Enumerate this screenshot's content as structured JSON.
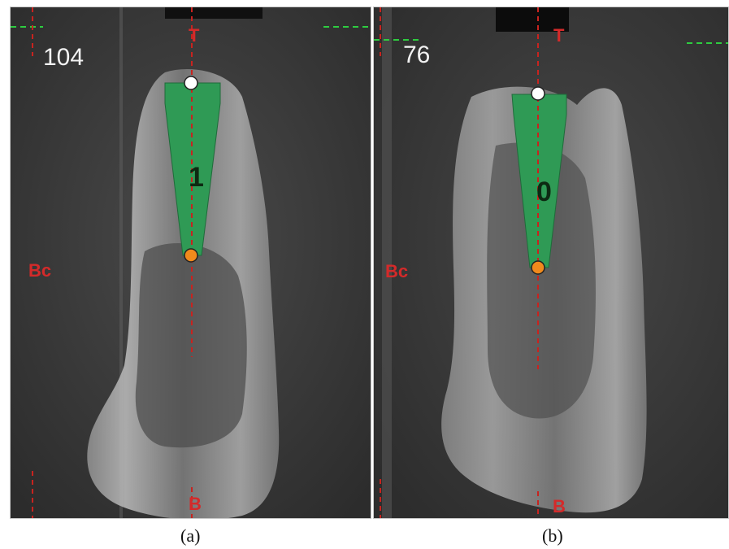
{
  "panels": [
    {
      "slice_number": "104",
      "label_top": "T",
      "label_left": "Bc",
      "label_bottom": "B",
      "implant_score": "1",
      "caption": "(a)"
    },
    {
      "slice_number": "76",
      "label_top": "T",
      "label_left": "Bc",
      "label_bottom": "B",
      "implant_score": "0",
      "caption": "(b)"
    }
  ],
  "colors": {
    "implant_fill": "#2f9a55",
    "axis_line": "#c8231f",
    "guide_line": "#2ecc40",
    "top_marker": "#ffffff",
    "apex_marker": "#f08a1c",
    "label_red": "#d42a2a"
  }
}
